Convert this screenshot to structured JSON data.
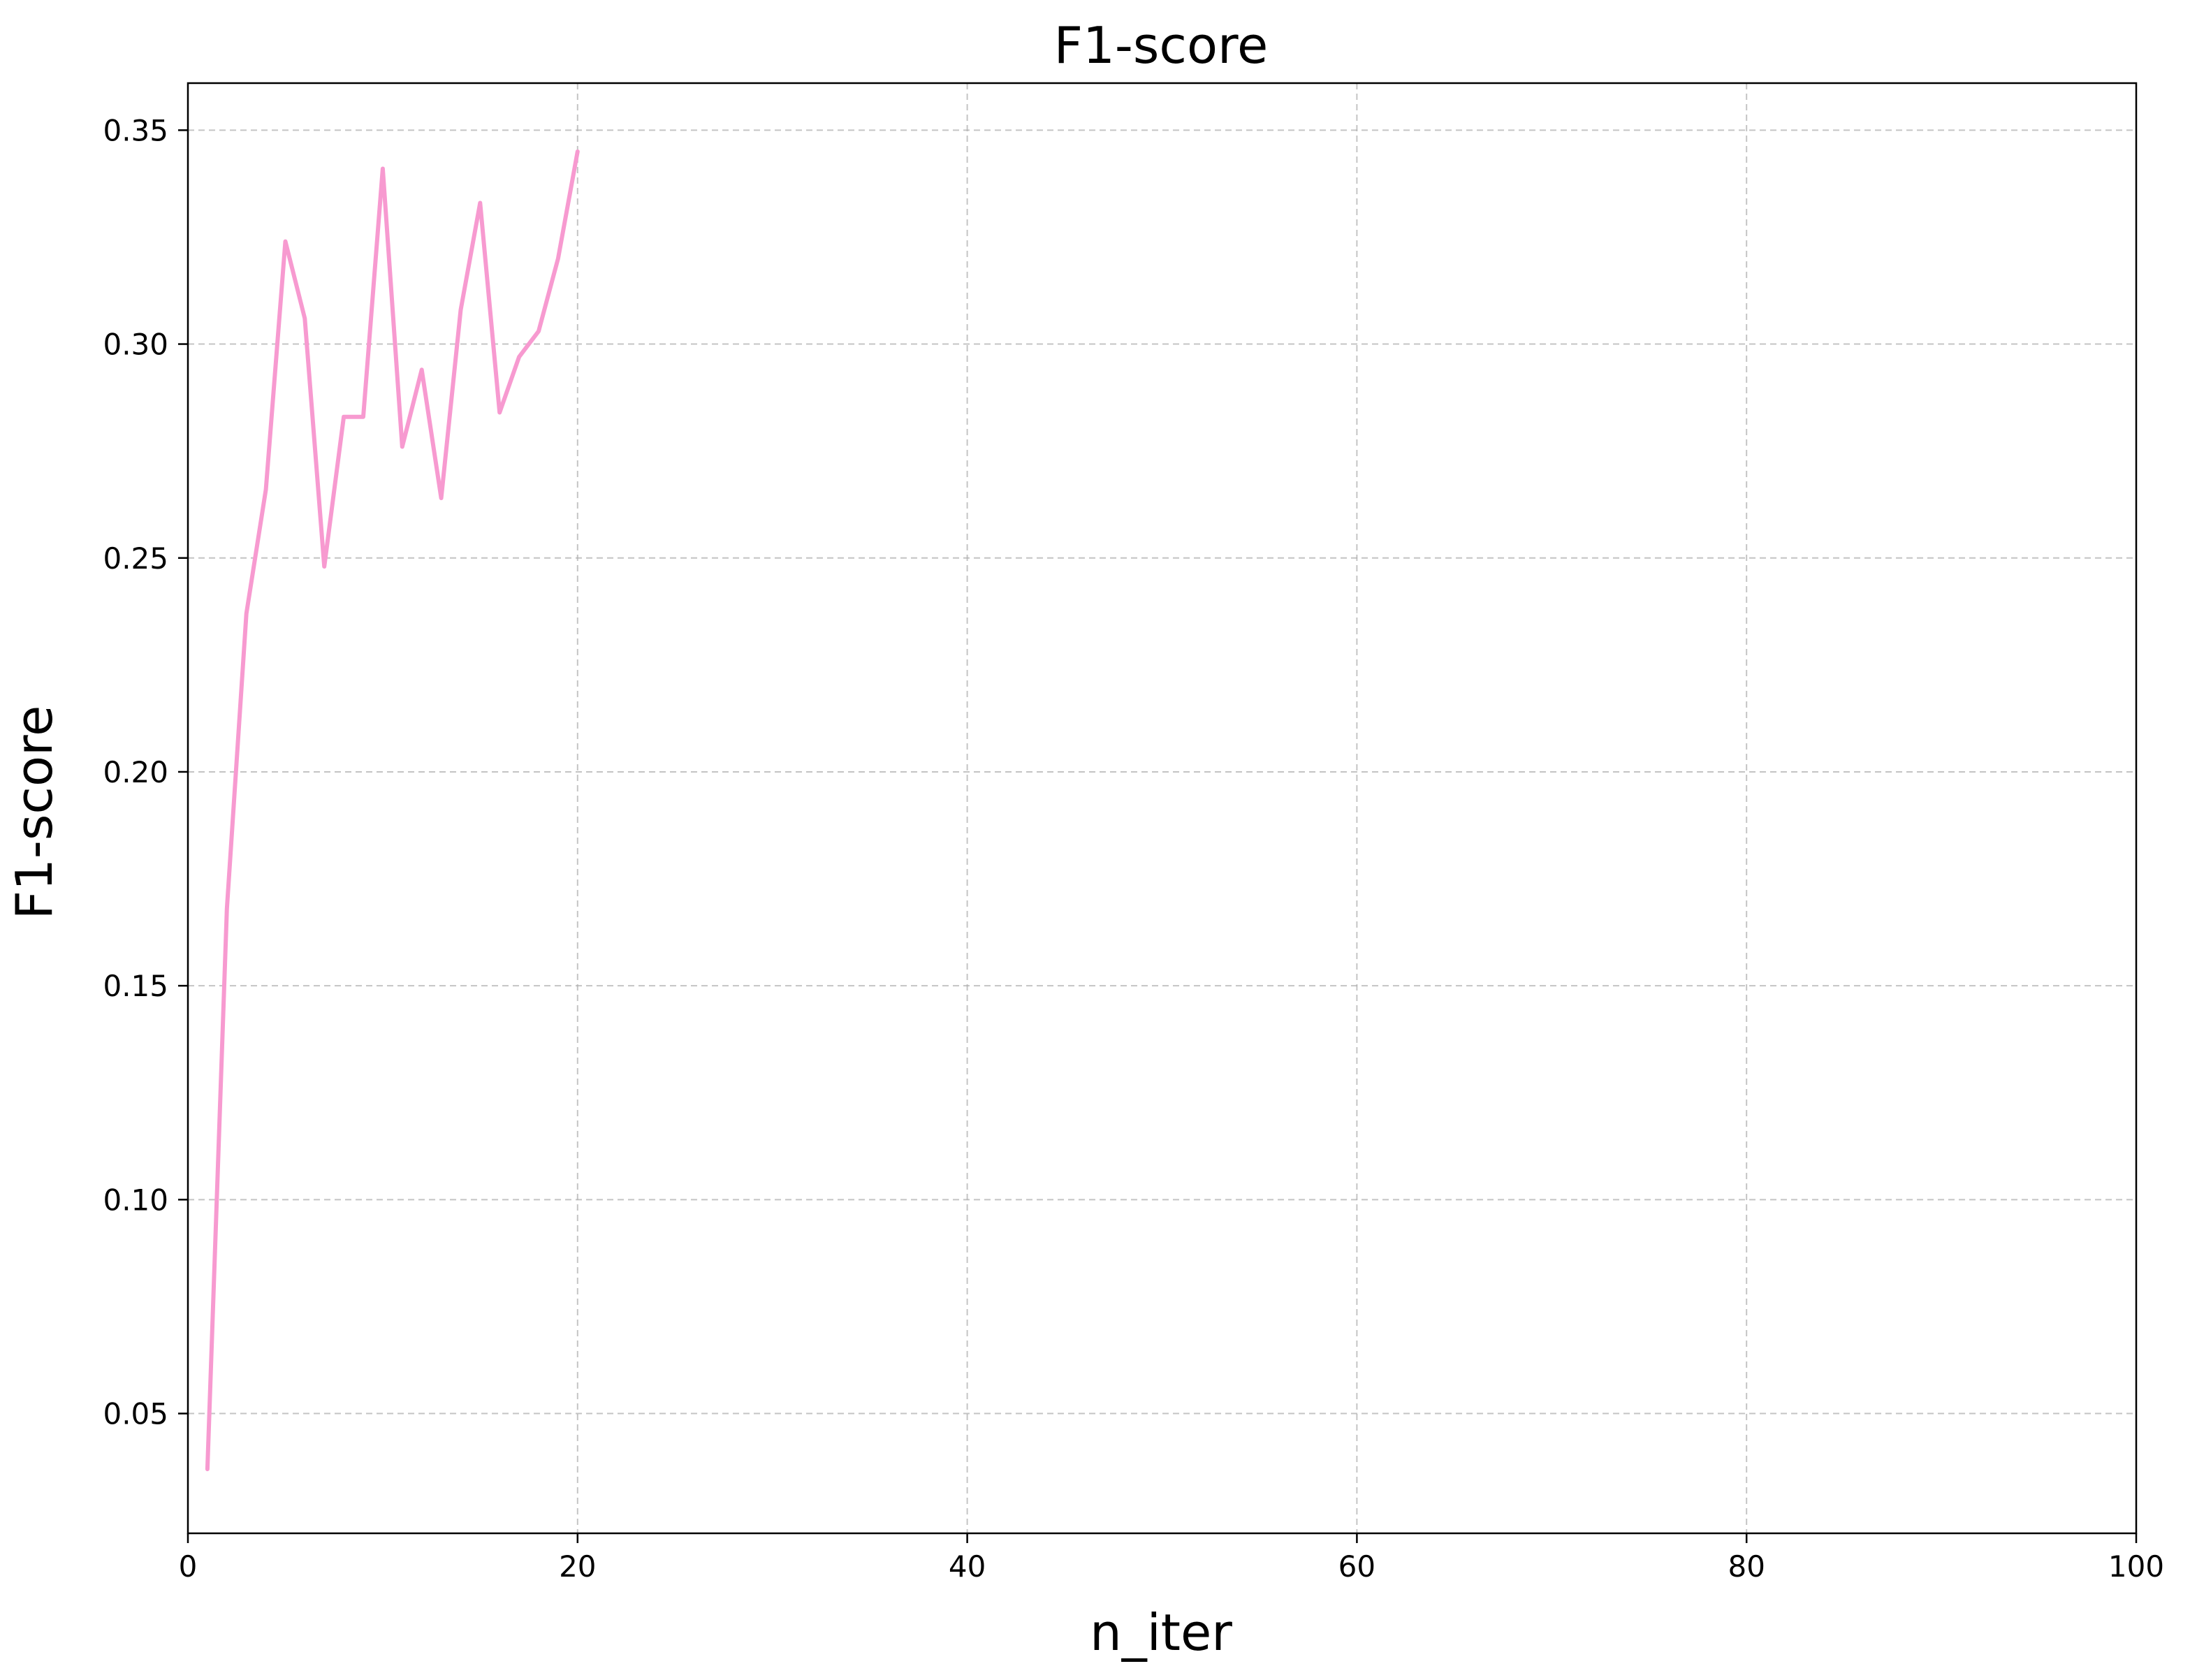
{
  "chart_data": {
    "type": "line",
    "title": "F1-score",
    "xlabel": "n_iter",
    "ylabel": "F1-score",
    "xlim": [
      0,
      100
    ],
    "ylim": [
      0.022,
      0.361
    ],
    "xticks": [
      0,
      20,
      40,
      60,
      80,
      100
    ],
    "xtick_labels": [
      "0",
      "20",
      "40",
      "60",
      "80",
      "100"
    ],
    "yticks": [
      0.05,
      0.1,
      0.15,
      0.2,
      0.25,
      0.3,
      0.35
    ],
    "ytick_labels": [
      "0.05",
      "0.10",
      "0.15",
      "0.20",
      "0.25",
      "0.30",
      "0.35"
    ],
    "grid": true,
    "series": [
      {
        "color": "#f79ad0",
        "x": [
          1,
          2,
          3,
          4,
          5,
          6,
          7,
          8,
          9,
          10,
          11,
          12,
          13,
          14,
          15,
          16,
          17,
          18,
          19,
          20
        ],
        "y": [
          0.037,
          0.168,
          0.237,
          0.266,
          0.324,
          0.306,
          0.248,
          0.283,
          0.283,
          0.341,
          0.276,
          0.294,
          0.264,
          0.308,
          0.333,
          0.284,
          0.297,
          0.303,
          0.32,
          0.345
        ]
      }
    ]
  }
}
